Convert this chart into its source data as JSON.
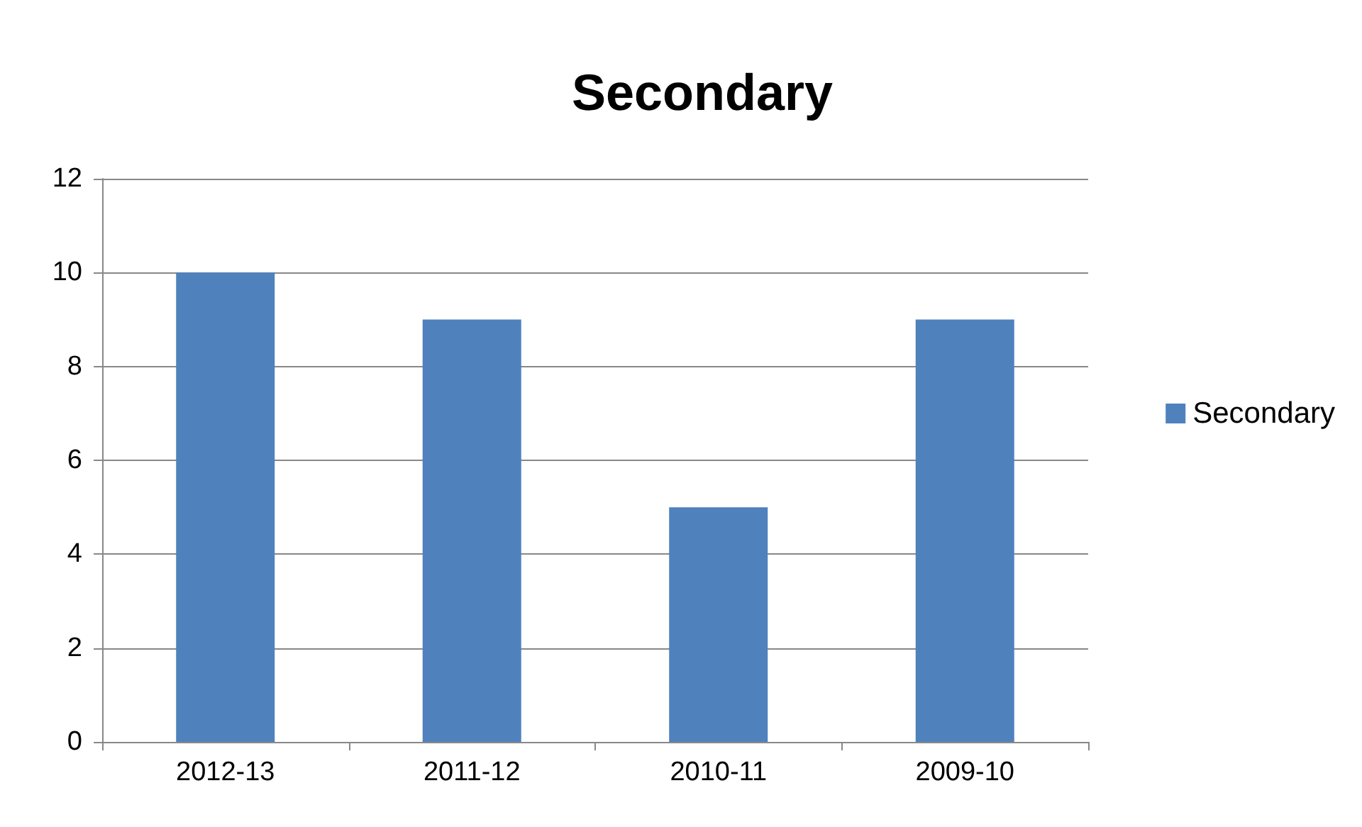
{
  "chart_data": {
    "type": "bar",
    "title": "Secondary",
    "categories": [
      "2012-13",
      "2011-12",
      "2010-11",
      "2009-10"
    ],
    "series": [
      {
        "name": "Secondary",
        "color": "#4f81bd",
        "values": [
          10,
          9,
          5,
          9
        ]
      }
    ],
    "ylim": [
      0,
      12
    ],
    "yticks": [
      0,
      2,
      4,
      6,
      8,
      10,
      12
    ],
    "grid": "y",
    "legend": "right"
  }
}
